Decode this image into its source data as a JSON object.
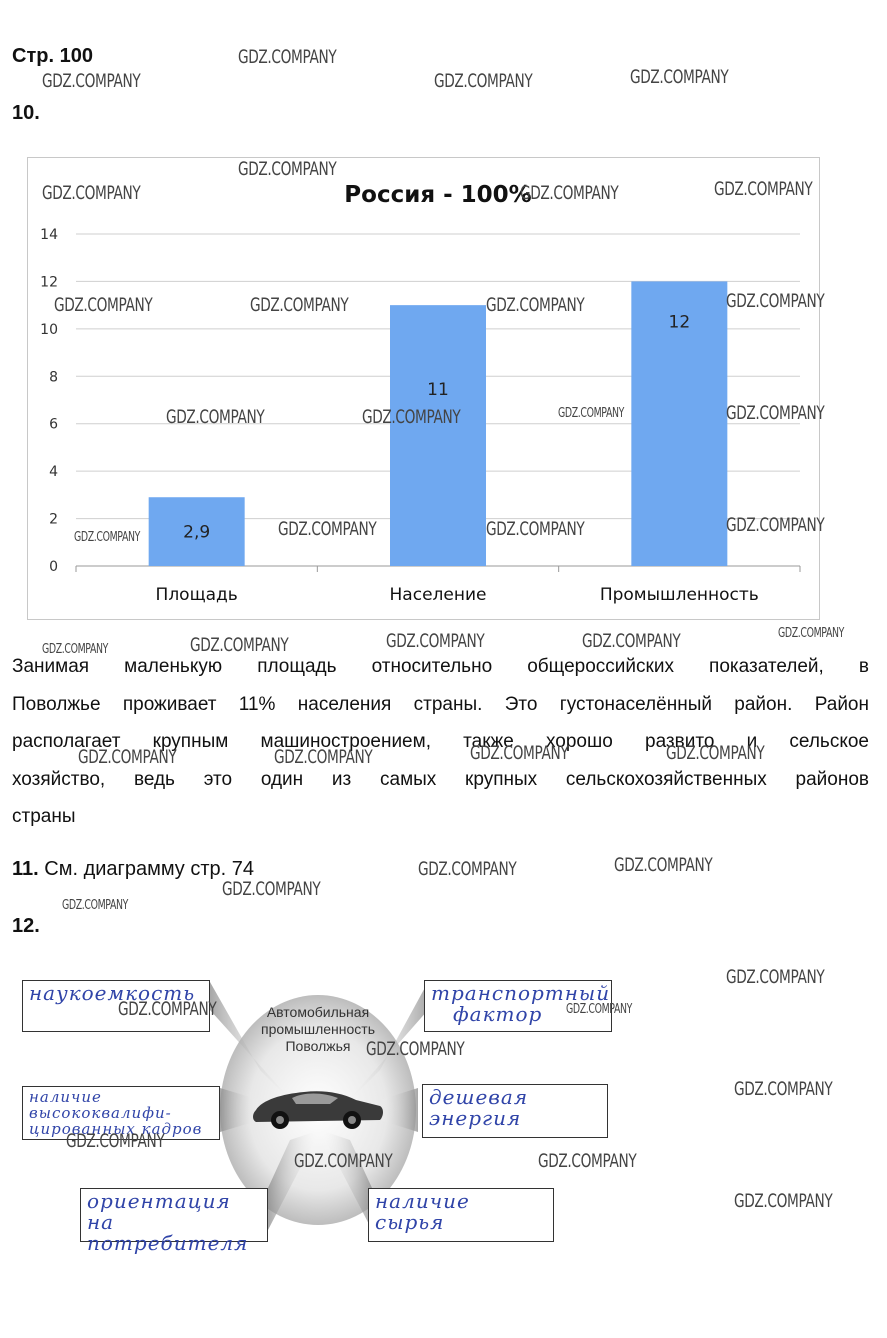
{
  "page": {
    "page_ref": "Стр. 100",
    "q10_label": "10.",
    "q11_label": "11.",
    "q11_text": " См. диаграмму стр. 74",
    "q12_label": "12."
  },
  "paragraph": {
    "lines": [
      "Занимая маленькую площадь относительно общероссийских показателей, в",
      "Поволжье проживает 11% населения страны. Это густонаселённый район. Район",
      "располагает крупным машиностроением, также хорошо развито и сельское",
      "хозяйство, ведь это один из самых крупных сельскохозяйственных районов",
      "страны"
    ]
  },
  "chart_data": {
    "type": "bar",
    "title": "Россия - 100%",
    "categories": [
      "Площадь",
      "Население",
      "Промышленность"
    ],
    "values": [
      2.9,
      11,
      12
    ],
    "data_labels": [
      "2,9",
      "11",
      "12"
    ],
    "ylim": [
      0,
      14
    ],
    "yticks": [
      "0",
      "2",
      "4",
      "6",
      "8",
      "10",
      "12",
      "14"
    ],
    "grid": true,
    "bar_color": "#6fa8f0",
    "xlabel": "",
    "ylabel": ""
  },
  "diagram": {
    "center_label_lines": [
      "Автомобильная",
      "промышленность",
      "Поволжья"
    ],
    "boxes": [
      {
        "lines": [
          "наукоемкость"
        ]
      },
      {
        "lines": [
          "транспортный",
          "фактор"
        ]
      },
      {
        "lines": [
          "наличие",
          "высококвалифи-",
          "цированных кадров"
        ]
      },
      {
        "lines": [
          "дешевая",
          "энергия"
        ]
      },
      {
        "lines": [
          "ориентация",
          "на потребителя"
        ]
      },
      {
        "lines": [
          "наличие",
          "сырья"
        ]
      }
    ],
    "handwriting_color": "#3044a8"
  },
  "watermark": {
    "text": "GDZ.COMPANY"
  }
}
